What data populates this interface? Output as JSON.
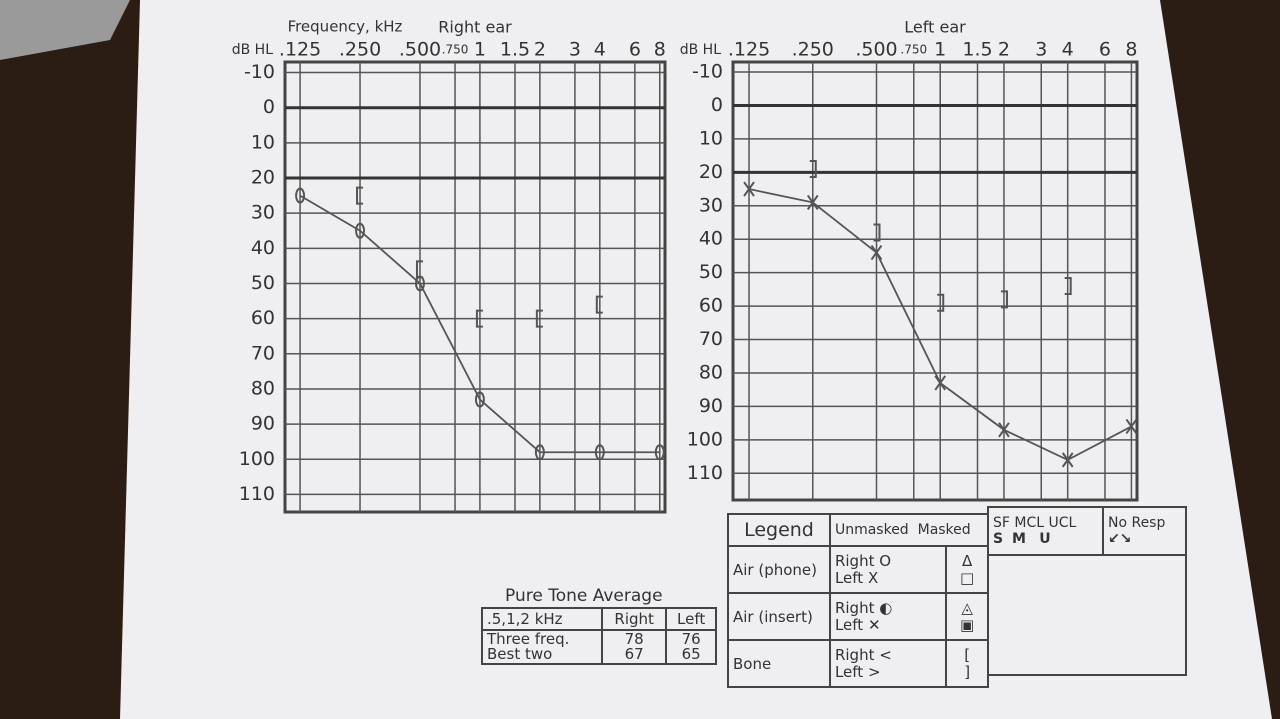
{
  "chart_data": [
    {
      "type": "line",
      "title": "Right ear",
      "x_label": "Frequency, kHz",
      "y_label": "dB HL",
      "xscale": "log",
      "xlim": [
        0.105,
        8.5
      ],
      "ylim": [
        -13,
        115
      ],
      "y_inverted": true,
      "grid": true,
      "xticks": [
        {
          "value": 0.125,
          "label": ".125"
        },
        {
          "value": 0.25,
          "label": ".250"
        },
        {
          "value": 0.5,
          "label": ".500"
        },
        {
          "value": 0.75,
          "label": ".750"
        },
        1,
        1.5,
        2,
        3,
        4,
        6,
        8
      ],
      "yticks": [
        -10,
        0,
        10,
        20,
        30,
        40,
        50,
        60,
        70,
        80,
        90,
        100,
        110
      ],
      "reference_lines": [
        0,
        20
      ],
      "x": [
        0.125,
        0.25,
        0.5,
        1,
        2,
        4,
        8
      ],
      "series": [
        {
          "color": "#555555",
          "marker": "circle",
          "line": true,
          "values": [
            25,
            35,
            50,
            83,
            98,
            98,
            98
          ]
        },
        {
          "color": "#555555",
          "marker": "bracket-left",
          "line": false,
          "values": [
            null,
            25,
            46,
            60,
            60,
            56,
            null
          ]
        }
      ]
    },
    {
      "type": "line",
      "title": "Left ear",
      "y_label": "dB HL",
      "xscale": "log",
      "xlim": [
        0.105,
        8.5
      ],
      "ylim": [
        -13,
        118
      ],
      "y_inverted": true,
      "grid": true,
      "xticks": [
        {
          "value": 0.125,
          "label": ".125"
        },
        {
          "value": 0.25,
          "label": ".250"
        },
        {
          "value": 0.5,
          "label": ".500"
        },
        {
          "value": 0.75,
          "label": ".750"
        },
        1,
        1.5,
        2,
        3,
        4,
        6,
        8
      ],
      "yticks": [
        -10,
        0,
        10,
        20,
        30,
        40,
        50,
        60,
        70,
        80,
        90,
        100,
        110
      ],
      "reference_lines": [
        0,
        20
      ],
      "x": [
        0.125,
        0.25,
        0.5,
        1,
        2,
        4,
        8
      ],
      "series": [
        {
          "color": "#555555",
          "marker": "x",
          "line": true,
          "values": [
            25,
            29,
            44,
            83,
            97,
            106,
            96
          ]
        },
        {
          "color": "#555555",
          "marker": "bracket-right",
          "line": false,
          "values": [
            null,
            19,
            38,
            59,
            58,
            54,
            null
          ]
        }
      ]
    }
  ],
  "pure_tone_average": {
    "title": "Pure Tone Average",
    "header": [
      ".5,1,2 kHz",
      "Right",
      "Left"
    ],
    "rows": [
      [
        "Three freq.",
        78,
        76
      ],
      [
        "Best two",
        67,
        65
      ]
    ]
  },
  "legend": {
    "title": "Legend",
    "columns": [
      "Unmasked",
      "Masked"
    ],
    "rows": [
      {
        "label": "Air (phone)",
        "right": "Right",
        "left": "Left",
        "symbols": [
          "O",
          "X",
          "Δ",
          "□"
        ]
      },
      {
        "label": "Air (insert)",
        "right": "Right",
        "left": "Left",
        "symbols": [
          "◐",
          "✕",
          "◬",
          "▣"
        ]
      },
      {
        "label": "Bone",
        "right": "Right",
        "left": "Left",
        "symbols": [
          "<",
          ">",
          "[",
          "]"
        ]
      }
    ],
    "extra_header": [
      "SF",
      "MCL",
      "UCL",
      "No Resp"
    ],
    "extra_symbols": [
      "S",
      "M",
      "U",
      "↙↘"
    ]
  }
}
